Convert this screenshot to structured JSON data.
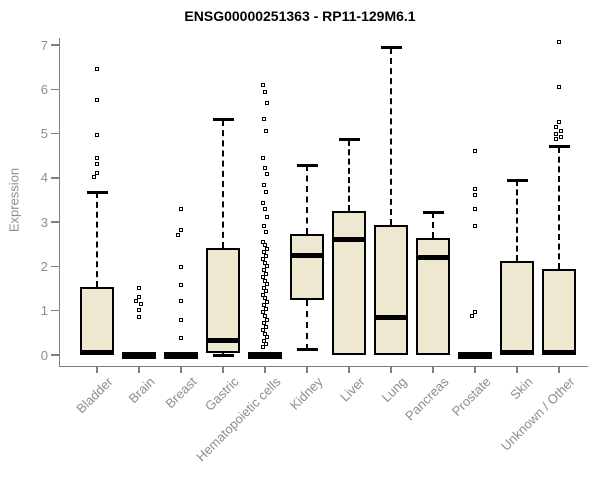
{
  "chart_data": {
    "type": "boxplot",
    "title": "ENSG00000251363 - RP11-129M6.1",
    "xlabel": "",
    "ylabel": "Expression",
    "ylim": [
      0,
      7
    ],
    "yticks": [
      0,
      1,
      2,
      3,
      4,
      5,
      6,
      7
    ],
    "grid": false,
    "legend": "none",
    "colors": {
      "box_fill": "#EDE8CF",
      "box_border": "#000000",
      "axis_line": "#7f7f7f",
      "tick_label": "#8d8d8d",
      "title_color": "#000000"
    },
    "categories": [
      "Bladder",
      "Brain",
      "Breast",
      "Gastric",
      "Hematopoietic cells",
      "Kidney",
      "Liver",
      "Lung",
      "Pancreas",
      "Prostate",
      "Skin",
      "Unknown / Other"
    ],
    "series": [
      {
        "name": "Bladder",
        "q1": 0,
        "median": 0.06,
        "q3": 1.54,
        "whisker_low": 0,
        "whisker_high": 3.68,
        "outliers": [
          6.44,
          5.76,
          4.97,
          4.45,
          4.3,
          4.1,
          4.02
        ]
      },
      {
        "name": "Brain",
        "q1": 0,
        "median": 0,
        "q3": 0,
        "whisker_low": 0,
        "whisker_high": 0,
        "outliers": [
          1.5,
          1.3,
          1.2,
          1.15,
          1.0,
          0.85
        ]
      },
      {
        "name": "Breast",
        "q1": 0,
        "median": 0,
        "q3": 0,
        "whisker_low": 0,
        "whisker_high": 0,
        "outliers": [
          3.28,
          2.82,
          2.71,
          1.97,
          1.58,
          1.2,
          0.79,
          0.38
        ]
      },
      {
        "name": "Gastric",
        "q1": 0.05,
        "median": 0.33,
        "q3": 2.42,
        "whisker_low": 0,
        "whisker_high": 5.31,
        "outliers": []
      },
      {
        "name": "Hematopoietic cells",
        "q1": 0,
        "median": 0,
        "q3": 0,
        "whisker_low": 0,
        "whisker_high": 0,
        "outliers": [
          6.1,
          5.94,
          5.69,
          5.31,
          5.04,
          4.45,
          4.22,
          4.07,
          3.84,
          3.68,
          3.43,
          3.28,
          3.1,
          2.91,
          2.76,
          2.55,
          2.47,
          2.39,
          2.31,
          2.23,
          2.15,
          2.07,
          1.99,
          1.91,
          1.83,
          1.75,
          1.67,
          1.59,
          1.51,
          1.43,
          1.35,
          1.27,
          1.19,
          1.11,
          1.03,
          0.95,
          0.87,
          0.79,
          0.71,
          0.63,
          0.55,
          0.47,
          0.39,
          0.31,
          0.24,
          0.16
        ]
      },
      {
        "name": "Kidney",
        "q1": 1.24,
        "median": 2.24,
        "q3": 2.73,
        "whisker_low": 0.12,
        "whisker_high": 4.29,
        "outliers": []
      },
      {
        "name": "Liver",
        "q1": 0,
        "median": 2.6,
        "q3": 3.25,
        "whisker_low": 0,
        "whisker_high": 4.86,
        "outliers": []
      },
      {
        "name": "Lung",
        "q1": 0,
        "median": 0.84,
        "q3": 2.94,
        "whisker_low": 0,
        "whisker_high": 6.94,
        "outliers": []
      },
      {
        "name": "Pancreas",
        "q1": 0,
        "median": 2.2,
        "q3": 2.64,
        "whisker_low": 0,
        "whisker_high": 3.23,
        "outliers": []
      },
      {
        "name": "Prostate",
        "q1": 0,
        "median": 0,
        "q3": 0,
        "whisker_low": 0,
        "whisker_high": 0,
        "outliers": [
          4.6,
          3.75,
          3.6,
          3.28,
          2.9,
          0.95,
          0.88
        ]
      },
      {
        "name": "Skin",
        "q1": 0,
        "median": 0.05,
        "q3": 2.12,
        "whisker_low": 0,
        "whisker_high": 3.95,
        "outliers": []
      },
      {
        "name": "Unknown / Other",
        "q1": 0,
        "median": 0.05,
        "q3": 1.95,
        "whisker_low": 0,
        "whisker_high": 4.7,
        "outliers": [
          7.05,
          6.05,
          5.25,
          5.13,
          5.05,
          4.98,
          4.92,
          4.86
        ]
      }
    ]
  }
}
